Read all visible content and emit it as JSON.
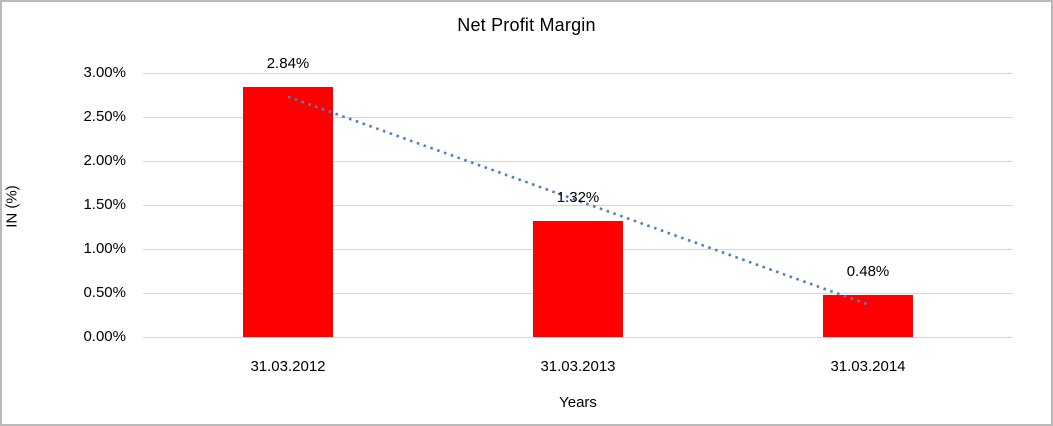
{
  "chart_data": {
    "type": "bar",
    "title": "Net Profit Margin",
    "xlabel": "Years",
    "ylabel": "IN (%)",
    "categories": [
      "31.03.2012",
      "31.03.2013",
      "31.03.2014"
    ],
    "values": [
      2.84,
      1.32,
      0.48
    ],
    "data_labels": [
      "2.84%",
      "1.32%",
      "0.48%"
    ],
    "ylim": [
      0,
      3
    ],
    "ytick_step": 0.5,
    "ytick_labels": [
      "0.00%",
      "0.50%",
      "1.00%",
      "1.50%",
      "2.00%",
      "2.50%",
      "3.00%"
    ],
    "grid": true,
    "legend": "none",
    "colors": {
      "bar": "#ff0000",
      "gridline": "#d6d6d6",
      "trendline": "#4f81bd",
      "text": "#000000",
      "frame_border": "#b9b9b9"
    },
    "trendline": {
      "type": "linear",
      "style": "dotted",
      "start_value": 2.73,
      "end_value": 0.37
    }
  }
}
